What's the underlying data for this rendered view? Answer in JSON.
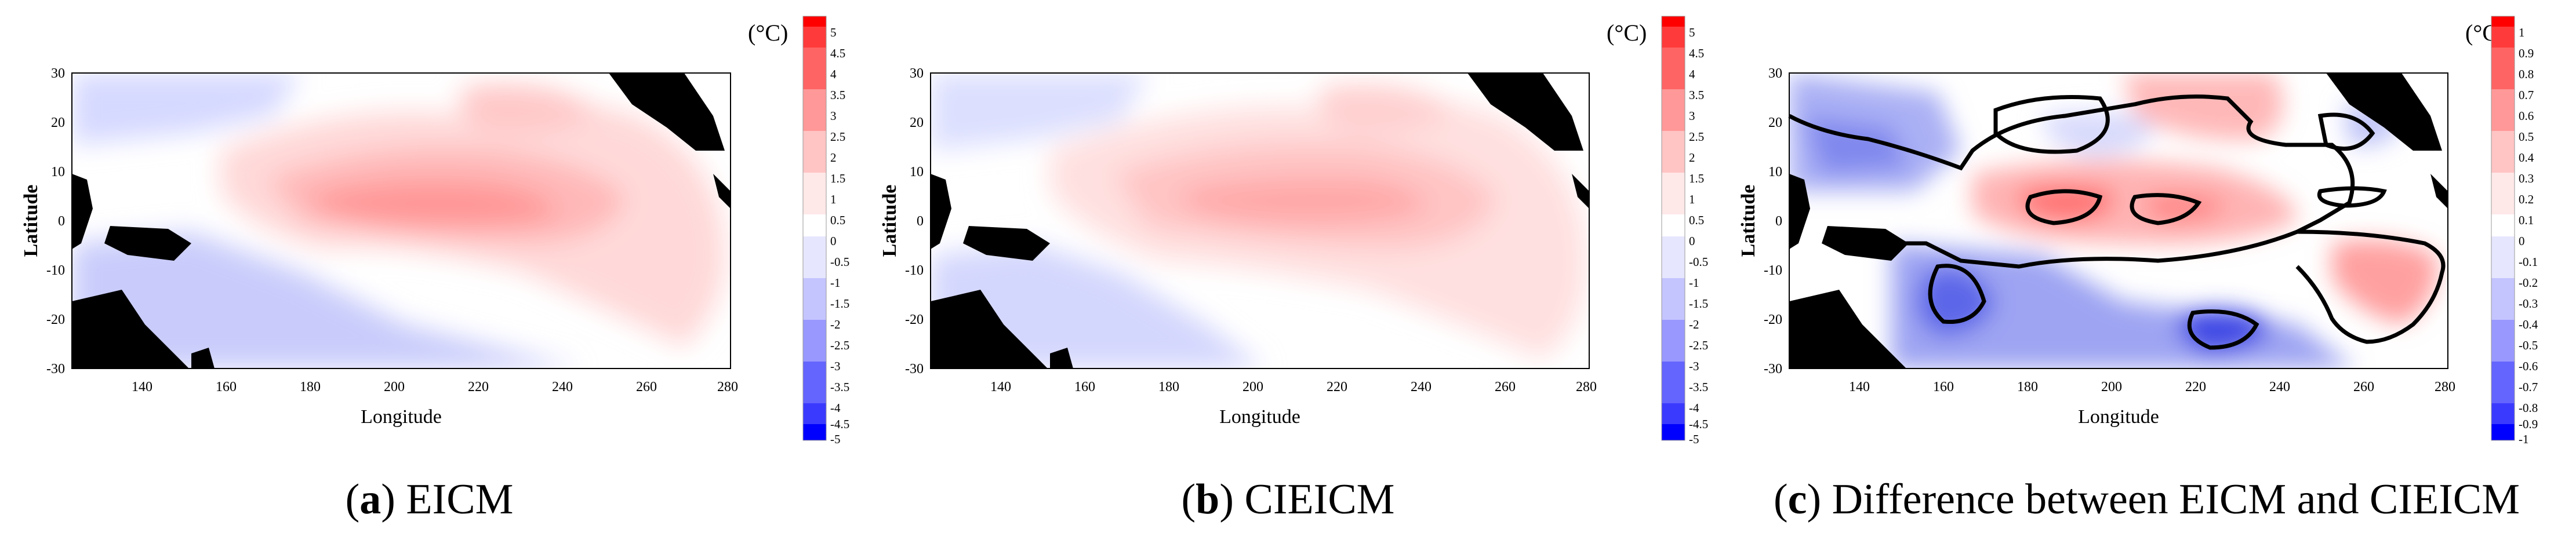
{
  "panels": [
    {
      "id": "a",
      "caption_letter": "a",
      "caption_text": "EICM",
      "unit": "(°C)",
      "colorbar_ticks": [
        "5",
        "4.5",
        "4",
        "3.5",
        "3",
        "2.5",
        "2",
        "1.5",
        "1",
        "0.5",
        "0",
        "-0.5",
        "-1",
        "-1.5",
        "-2",
        "-2.5",
        "-3",
        "-3.5",
        "-4",
        "-4.5",
        "-5"
      ],
      "colorbar_max": 5,
      "xlabel": "Longitude",
      "ylabel": "Latitude",
      "xticks": [
        "140",
        "160",
        "180",
        "200",
        "220",
        "240",
        "260",
        "280"
      ],
      "yticks": [
        "30",
        "20",
        "10",
        "0",
        "-10",
        "-20",
        "-30"
      ]
    },
    {
      "id": "b",
      "caption_letter": "b",
      "caption_text": "CIEICM",
      "unit": "(°C)",
      "colorbar_ticks": [
        "5",
        "4.5",
        "4",
        "3.5",
        "3",
        "2.5",
        "2",
        "1.5",
        "1",
        "0.5",
        "0",
        "-0.5",
        "-1",
        "-1.5",
        "-2",
        "-2.5",
        "-3",
        "-3.5",
        "-4",
        "-4.5",
        "-5"
      ],
      "colorbar_max": 5,
      "xlabel": "Longitude",
      "ylabel": "Latitude",
      "xticks": [
        "140",
        "160",
        "180",
        "200",
        "220",
        "240",
        "260",
        "280"
      ],
      "yticks": [
        "30",
        "20",
        "10",
        "0",
        "-10",
        "-20",
        "-30"
      ]
    },
    {
      "id": "c",
      "caption_letter": "c",
      "caption_text": "Difference between EICM and CIEICM",
      "unit": "(°C)",
      "colorbar_ticks": [
        "1",
        "0.9",
        "0.8",
        "0.7",
        "0.6",
        "0.5",
        "0.4",
        "0.3",
        "0.2",
        "0.1",
        "0",
        "-0.1",
        "-0.2",
        "-0.3",
        "-0.4",
        "-0.5",
        "-0.6",
        "-0.7",
        "-0.8",
        "-0.9",
        "-1"
      ],
      "colorbar_max": 1,
      "xlabel": "Longitude",
      "ylabel": "Latitude",
      "xticks": [
        "140",
        "160",
        "180",
        "200",
        "220",
        "240",
        "260",
        "280"
      ],
      "yticks": [
        "30",
        "20",
        "10",
        "0",
        "-10",
        "-20",
        "-30"
      ]
    }
  ],
  "chart_data": [
    {
      "type": "heatmap",
      "xlabel": "Longitude",
      "ylabel": "Latitude",
      "xlim": [
        124,
        282
      ],
      "ylim": [
        -30,
        30
      ],
      "colorbar_range": [
        -5,
        5
      ],
      "colorbar_step": 0.5,
      "colors": {
        "positive_max": "#ff0000",
        "negative_max": "#0000ff",
        "zero": "#ffffff",
        "land": "#000000"
      },
      "features": [
        {
          "kind": "warm",
          "lon": 210,
          "lat": 0,
          "value": 2.0
        },
        {
          "kind": "warm",
          "lon": 205,
          "lat": 10,
          "value": 1.0
        },
        {
          "kind": "warm",
          "lon": 225,
          "lat": 22,
          "value": 1.0
        },
        {
          "kind": "cool",
          "lon": 180,
          "lat": 20,
          "value": -0.5
        },
        {
          "kind": "cool",
          "lon": 180,
          "lat": -25,
          "value": -0.8
        }
      ]
    },
    {
      "type": "heatmap",
      "xlabel": "Longitude",
      "ylabel": "Latitude",
      "xlim": [
        124,
        282
      ],
      "ylim": [
        -30,
        30
      ],
      "colorbar_range": [
        -5,
        5
      ],
      "colorbar_step": 0.5,
      "colors": {
        "positive_max": "#ff0000",
        "negative_max": "#0000ff",
        "zero": "#ffffff",
        "land": "#000000"
      },
      "features": [
        {
          "kind": "warm",
          "lon": 210,
          "lat": 2,
          "value": 1.5
        },
        {
          "kind": "warm",
          "lon": 205,
          "lat": 12,
          "value": 0.8
        },
        {
          "kind": "warm",
          "lon": 225,
          "lat": 22,
          "value": 0.8
        },
        {
          "kind": "cool",
          "lon": 175,
          "lat": 25,
          "value": -0.4
        },
        {
          "kind": "cool",
          "lon": 165,
          "lat": -15,
          "value": -0.6
        }
      ]
    },
    {
      "type": "heatmap",
      "xlabel": "Longitude",
      "ylabel": "Latitude",
      "xlim": [
        124,
        282
      ],
      "ylim": [
        -30,
        30
      ],
      "colorbar_range": [
        -1,
        1
      ],
      "colorbar_step": 0.1,
      "colors": {
        "positive_max": "#ff0000",
        "negative_max": "#0000ff",
        "zero": "#ffffff",
        "land": "#000000"
      },
      "features": [
        {
          "kind": "warm",
          "lon": 195,
          "lat": 1,
          "value": 0.6
        },
        {
          "kind": "warm",
          "lon": 215,
          "lat": 1,
          "value": 0.5
        },
        {
          "kind": "warm",
          "lon": 220,
          "lat": 25,
          "value": 0.4
        },
        {
          "kind": "warm",
          "lon": 260,
          "lat": -20,
          "value": 0.4
        },
        {
          "kind": "cool",
          "lon": 135,
          "lat": 10,
          "value": -0.5
        },
        {
          "kind": "cool",
          "lon": 175,
          "lat": -20,
          "value": -0.6
        },
        {
          "kind": "cool",
          "lon": 238,
          "lat": -23,
          "value": -0.8
        },
        {
          "kind": "cool",
          "lon": 200,
          "lat": 12,
          "value": -0.2
        }
      ]
    }
  ]
}
